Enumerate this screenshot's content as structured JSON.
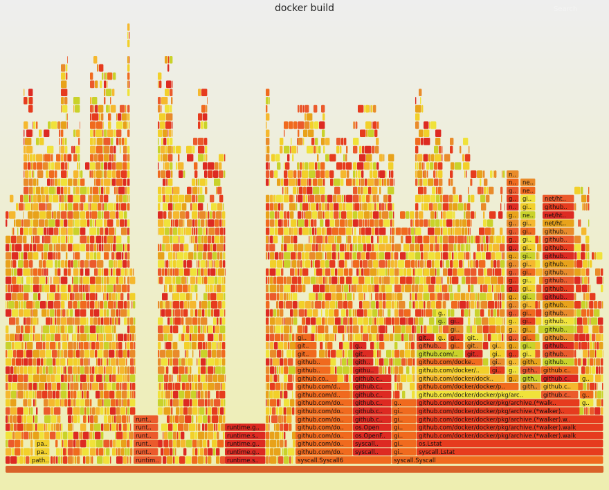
{
  "header": {
    "title": "docker build",
    "search_label": "Search"
  },
  "chart_data": {
    "type": "flamegraph",
    "title": "docker build",
    "colors": [
      "#e63b1e",
      "#f06a1e",
      "#e8a21a",
      "#f2d02a",
      "#eb5a2c",
      "#f5b82e",
      "#dd2a22",
      "#f0e23a",
      "#e98b2a",
      "#c9d22a"
    ],
    "frames": [
      {
        "label": "path..",
        "depth": 1,
        "start": 43,
        "end": 72
      },
      {
        "label": "pa..",
        "depth": 2,
        "start": 50,
        "end": 72
      },
      {
        "label": "pa..",
        "depth": 3,
        "start": 50,
        "end": 72
      },
      {
        "label": "runtim..",
        "depth": 1,
        "start": 193,
        "end": 234
      },
      {
        "label": "runt..",
        "depth": 2,
        "start": 193,
        "end": 229
      },
      {
        "label": "runt..",
        "depth": 3,
        "start": 193,
        "end": 229
      },
      {
        "label": "runt..",
        "depth": 4,
        "start": 193,
        "end": 229
      },
      {
        "label": "runt..",
        "depth": 5,
        "start": 193,
        "end": 229
      },
      {
        "label": "runt..",
        "depth": 6,
        "start": 193,
        "end": 229
      },
      {
        "label": "runtime.s..",
        "depth": 1,
        "start": 325,
        "end": 384
      },
      {
        "label": "runtime.g..",
        "depth": 2,
        "start": 325,
        "end": 384
      },
      {
        "label": "runtime.g..",
        "depth": 3,
        "start": 325,
        "end": 384
      },
      {
        "label": "runtime.s..",
        "depth": 4,
        "start": 325,
        "end": 384
      },
      {
        "label": "runtime.g..",
        "depth": 5,
        "start": 325,
        "end": 384
      },
      {
        "label": "syscall.Syscall6",
        "depth": 1,
        "start": 427,
        "end": 566
      },
      {
        "label": "github.com/do..",
        "depth": 2,
        "start": 427,
        "end": 510
      },
      {
        "label": "github.com/do..",
        "depth": 3,
        "start": 427,
        "end": 510
      },
      {
        "label": "github.com/do..",
        "depth": 4,
        "start": 427,
        "end": 510
      },
      {
        "label": "github.com/do..",
        "depth": 5,
        "start": 427,
        "end": 510
      },
      {
        "label": "github.com/do..",
        "depth": 6,
        "start": 427,
        "end": 510
      },
      {
        "label": "github.com/do..",
        "depth": 7,
        "start": 427,
        "end": 510
      },
      {
        "label": "github.com/do..",
        "depth": 8,
        "start": 427,
        "end": 510
      },
      {
        "label": "github.com/d..",
        "depth": 9,
        "start": 427,
        "end": 506
      },
      {
        "label": "github.com/d..",
        "depth": 10,
        "start": 427,
        "end": 506
      },
      {
        "label": "github.co..",
        "depth": 11,
        "start": 427,
        "end": 488
      },
      {
        "label": "github..",
        "depth": 12,
        "start": 427,
        "end": 478
      },
      {
        "label": "github..",
        "depth": 13,
        "start": 427,
        "end": 478
      },
      {
        "label": "git..",
        "depth": 14,
        "start": 427,
        "end": 458
      },
      {
        "label": "git..",
        "depth": 15,
        "start": 427,
        "end": 458
      },
      {
        "label": "gi..",
        "depth": 16,
        "start": 427,
        "end": 450
      },
      {
        "label": "syscall..",
        "depth": 2,
        "start": 510,
        "end": 566
      },
      {
        "label": "syscall..",
        "depth": 3,
        "start": 510,
        "end": 566
      },
      {
        "label": "os.OpenF..",
        "depth": 4,
        "start": 510,
        "end": 566
      },
      {
        "label": "os.Open",
        "depth": 5,
        "start": 510,
        "end": 566
      },
      {
        "label": "github.c..",
        "depth": 6,
        "start": 510,
        "end": 566
      },
      {
        "label": "github.c..",
        "depth": 7,
        "start": 510,
        "end": 566
      },
      {
        "label": "github.c..",
        "depth": 8,
        "start": 510,
        "end": 566
      },
      {
        "label": "github.c..",
        "depth": 9,
        "start": 510,
        "end": 566
      },
      {
        "label": "github.c..",
        "depth": 10,
        "start": 510,
        "end": 566
      },
      {
        "label": "github.c..",
        "depth": 11,
        "start": 510,
        "end": 566
      },
      {
        "label": "githu..",
        "depth": 12,
        "start": 510,
        "end": 548
      },
      {
        "label": "gith..",
        "depth": 13,
        "start": 510,
        "end": 540
      },
      {
        "label": "git..",
        "depth": 14,
        "start": 510,
        "end": 540
      },
      {
        "label": "g..",
        "depth": 15,
        "start": 510,
        "end": 530
      },
      {
        "label": "syscall.Syscall",
        "depth": 1,
        "start": 566,
        "end": 872
      },
      {
        "label": "gi..",
        "depth": 2,
        "start": 566,
        "end": 602
      },
      {
        "label": "gi..",
        "depth": 3,
        "start": 566,
        "end": 602
      },
      {
        "label": "gi..",
        "depth": 4,
        "start": 566,
        "end": 602
      },
      {
        "label": "gi..",
        "depth": 5,
        "start": 566,
        "end": 602
      },
      {
        "label": "gi..",
        "depth": 6,
        "start": 566,
        "end": 602
      },
      {
        "label": "gi..",
        "depth": 7,
        "start": 566,
        "end": 602
      },
      {
        "label": "g..",
        "depth": 8,
        "start": 566,
        "end": 602
      },
      {
        "label": "syscall.Lstat",
        "depth": 2,
        "start": 602,
        "end": 872
      },
      {
        "label": "os.Lstat",
        "depth": 3,
        "start": 602,
        "end": 872
      },
      {
        "label": "github.com/docker/docker/pkg/archive.(*walker).walk",
        "depth": 4,
        "start": 602,
        "end": 872
      },
      {
        "label": "github.com/docker/docker/pkg/archive.(*walker).walk",
        "depth": 5,
        "start": 602,
        "end": 872
      },
      {
        "label": "github.com/docker/docker/pkg/archive.(*walker).w..",
        "depth": 6,
        "start": 602,
        "end": 872
      },
      {
        "label": "github.com/docker/docker/pkg/archive.(*walker)..",
        "depth": 7,
        "start": 602,
        "end": 838
      },
      {
        "label": "github.com/docker/docker/pkg/archive.(*walk..",
        "depth": 8,
        "start": 602,
        "end": 838
      },
      {
        "label": "g..",
        "depth": 8,
        "start": 838,
        "end": 858
      },
      {
        "label": "github.com/docker/docker/pkg/arc..",
        "depth": 9,
        "start": 602,
        "end": 782
      },
      {
        "label": "github.c..",
        "depth": 9,
        "start": 782,
        "end": 836
      },
      {
        "label": "g..",
        "depth": 9,
        "start": 838,
        "end": 858
      },
      {
        "label": "github.com/docker/docker/p..",
        "depth": 10,
        "start": 602,
        "end": 750
      },
      {
        "label": "gith..",
        "depth": 10,
        "start": 752,
        "end": 782
      },
      {
        "label": "github.c..",
        "depth": 10,
        "start": 782,
        "end": 836
      },
      {
        "label": "github.com/docker/dock..",
        "depth": 11,
        "start": 602,
        "end": 730
      },
      {
        "label": "g..",
        "depth": 11,
        "start": 732,
        "end": 750
      },
      {
        "label": "gith..",
        "depth": 11,
        "start": 752,
        "end": 782
      },
      {
        "label": "github.c..",
        "depth": 11,
        "start": 782,
        "end": 836
      },
      {
        "label": "g..",
        "depth": 11,
        "start": 838,
        "end": 858
      },
      {
        "label": "github.com/docker/..",
        "depth": 12,
        "start": 602,
        "end": 708
      },
      {
        "label": "gi..",
        "depth": 12,
        "start": 708,
        "end": 730
      },
      {
        "label": "g..",
        "depth": 12,
        "start": 732,
        "end": 750
      },
      {
        "label": "gith..",
        "depth": 12,
        "start": 752,
        "end": 782
      },
      {
        "label": "github.c..",
        "depth": 12,
        "start": 782,
        "end": 836
      },
      {
        "label": "github.com/docke..",
        "depth": 13,
        "start": 602,
        "end": 698
      },
      {
        "label": "gi..",
        "depth": 13,
        "start": 708,
        "end": 730
      },
      {
        "label": "g..",
        "depth": 13,
        "start": 732,
        "end": 750
      },
      {
        "label": "gith..",
        "depth": 13,
        "start": 752,
        "end": 782
      },
      {
        "label": "github..",
        "depth": 13,
        "start": 784,
        "end": 830
      },
      {
        "label": "github.com/..",
        "depth": 14,
        "start": 602,
        "end": 670
      },
      {
        "label": "git..",
        "depth": 14,
        "start": 672,
        "end": 698
      },
      {
        "label": "gi..",
        "depth": 14,
        "start": 708,
        "end": 730
      },
      {
        "label": "g..",
        "depth": 14,
        "start": 732,
        "end": 750
      },
      {
        "label": "gi..",
        "depth": 14,
        "start": 752,
        "end": 774
      },
      {
        "label": "github..",
        "depth": 14,
        "start": 784,
        "end": 830
      },
      {
        "label": "github..",
        "depth": 15,
        "start": 602,
        "end": 646
      },
      {
        "label": "gi..",
        "depth": 15,
        "start": 648,
        "end": 670
      },
      {
        "label": "git..",
        "depth": 15,
        "start": 672,
        "end": 698
      },
      {
        "label": "gi..",
        "depth": 15,
        "start": 708,
        "end": 730
      },
      {
        "label": "g..",
        "depth": 15,
        "start": 732,
        "end": 750
      },
      {
        "label": "gi..",
        "depth": 15,
        "start": 752,
        "end": 774
      },
      {
        "label": "github..",
        "depth": 15,
        "start": 784,
        "end": 830
      },
      {
        "label": "git..",
        "depth": 16,
        "start": 602,
        "end": 628
      },
      {
        "label": "g..",
        "depth": 16,
        "start": 630,
        "end": 646
      },
      {
        "label": "gi..",
        "depth": 16,
        "start": 648,
        "end": 670
      },
      {
        "label": "git..",
        "depth": 16,
        "start": 672,
        "end": 698
      },
      {
        "label": "g..",
        "depth": 16,
        "start": 732,
        "end": 750
      },
      {
        "label": "gi..",
        "depth": 16,
        "start": 752,
        "end": 774
      },
      {
        "label": "github..",
        "depth": 16,
        "start": 784,
        "end": 830
      },
      {
        "label": "gi..",
        "depth": 17,
        "start": 648,
        "end": 670
      },
      {
        "label": "g..",
        "depth": 17,
        "start": 732,
        "end": 750
      },
      {
        "label": "gi..",
        "depth": 17,
        "start": 752,
        "end": 774
      },
      {
        "label": "github..",
        "depth": 17,
        "start": 784,
        "end": 830
      },
      {
        "label": "g..",
        "depth": 18,
        "start": 630,
        "end": 646
      },
      {
        "label": "gi..",
        "depth": 18,
        "start": 648,
        "end": 670
      },
      {
        "label": "g..",
        "depth": 18,
        "start": 732,
        "end": 750
      },
      {
        "label": "gi..",
        "depth": 18,
        "start": 752,
        "end": 774
      },
      {
        "label": "github..",
        "depth": 18,
        "start": 784,
        "end": 830
      },
      {
        "label": "g..",
        "depth": 19,
        "start": 630,
        "end": 646
      },
      {
        "label": "g..",
        "depth": 19,
        "start": 732,
        "end": 750
      },
      {
        "label": "gi..",
        "depth": 19,
        "start": 752,
        "end": 774
      },
      {
        "label": "github..",
        "depth": 19,
        "start": 784,
        "end": 830
      },
      {
        "label": "g..",
        "depth": 20,
        "start": 732,
        "end": 750
      },
      {
        "label": "gi..",
        "depth": 20,
        "start": 752,
        "end": 774
      },
      {
        "label": "github..",
        "depth": 20,
        "start": 784,
        "end": 830
      },
      {
        "label": "g..",
        "depth": 21,
        "start": 732,
        "end": 750
      },
      {
        "label": "gi..",
        "depth": 21,
        "start": 752,
        "end": 774
      },
      {
        "label": "github..",
        "depth": 21,
        "start": 784,
        "end": 830
      },
      {
        "label": "g..",
        "depth": 22,
        "start": 732,
        "end": 750
      },
      {
        "label": "gi..",
        "depth": 22,
        "start": 752,
        "end": 774
      },
      {
        "label": "github..",
        "depth": 22,
        "start": 784,
        "end": 830
      },
      {
        "label": "g..",
        "depth": 23,
        "start": 732,
        "end": 750
      },
      {
        "label": "gi..",
        "depth": 23,
        "start": 752,
        "end": 774
      },
      {
        "label": "github..",
        "depth": 23,
        "start": 784,
        "end": 830
      },
      {
        "label": "g..",
        "depth": 24,
        "start": 732,
        "end": 750
      },
      {
        "label": "gi..",
        "depth": 24,
        "start": 752,
        "end": 774
      },
      {
        "label": "github..",
        "depth": 24,
        "start": 784,
        "end": 830
      },
      {
        "label": "g..",
        "depth": 25,
        "start": 732,
        "end": 750
      },
      {
        "label": "gi..",
        "depth": 25,
        "start": 752,
        "end": 774
      },
      {
        "label": "github..",
        "depth": 25,
        "start": 784,
        "end": 830
      },
      {
        "label": "g..",
        "depth": 26,
        "start": 732,
        "end": 750
      },
      {
        "label": "gi..",
        "depth": 26,
        "start": 752,
        "end": 774
      },
      {
        "label": "github..",
        "depth": 26,
        "start": 784,
        "end": 830
      },
      {
        "label": "g..",
        "depth": 27,
        "start": 732,
        "end": 750
      },
      {
        "label": "gi..",
        "depth": 27,
        "start": 752,
        "end": 774
      },
      {
        "label": "github..",
        "depth": 27,
        "start": 784,
        "end": 830
      },
      {
        "label": "g..",
        "depth": 28,
        "start": 732,
        "end": 750
      },
      {
        "label": "gi..",
        "depth": 28,
        "start": 752,
        "end": 774
      },
      {
        "label": "github..",
        "depth": 28,
        "start": 784,
        "end": 830
      },
      {
        "label": "g..",
        "depth": 29,
        "start": 732,
        "end": 750
      },
      {
        "label": "gi..",
        "depth": 29,
        "start": 752,
        "end": 774
      },
      {
        "label": "github..",
        "depth": 29,
        "start": 784,
        "end": 830
      },
      {
        "label": "g..",
        "depth": 30,
        "start": 732,
        "end": 750
      },
      {
        "label": "gi..",
        "depth": 30,
        "start": 752,
        "end": 774
      },
      {
        "label": "net/ht..",
        "depth": 30,
        "start": 784,
        "end": 830
      },
      {
        "label": "g..",
        "depth": 31,
        "start": 732,
        "end": 750
      },
      {
        "label": "ne..",
        "depth": 31,
        "start": 752,
        "end": 774
      },
      {
        "label": "net/ht..",
        "depth": 31,
        "start": 784,
        "end": 830
      },
      {
        "label": "n..",
        "depth": 32,
        "start": 732,
        "end": 750
      },
      {
        "label": "gi..",
        "depth": 32,
        "start": 752,
        "end": 774
      },
      {
        "label": "github..",
        "depth": 32,
        "start": 784,
        "end": 830
      },
      {
        "label": "g..",
        "depth": 33,
        "start": 732,
        "end": 750
      },
      {
        "label": "gi..",
        "depth": 33,
        "start": 752,
        "end": 774
      },
      {
        "label": "net/ht..",
        "depth": 33,
        "start": 784,
        "end": 830
      },
      {
        "label": "g..",
        "depth": 34,
        "start": 732,
        "end": 750
      },
      {
        "label": "ne..",
        "depth": 34,
        "start": 752,
        "end": 774
      },
      {
        "label": "n..",
        "depth": 35,
        "start": 732,
        "end": 750
      },
      {
        "label": "ne..",
        "depth": 35,
        "start": 752,
        "end": 774
      },
      {
        "label": "n..",
        "depth": 36,
        "start": 732,
        "end": 750
      }
    ]
  }
}
